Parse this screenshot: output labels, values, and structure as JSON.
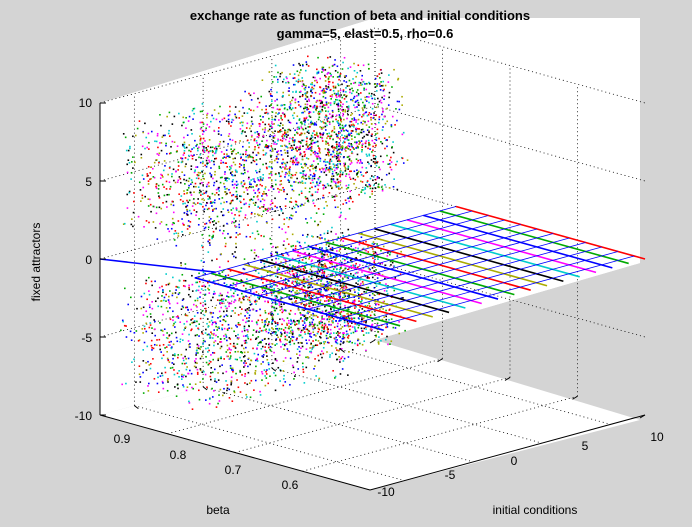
{
  "chart_data": {
    "type": "scatter",
    "title": "exchange rate as function of beta and initial conditions",
    "subtitle": "gamma=5, elast=0.5, rho=0.6",
    "xlabel": "initial conditions",
    "ylabel": "beta",
    "zlabel": "fixed attractors",
    "xlim": [
      -10,
      10
    ],
    "ylim": [
      0.55,
      0.95
    ],
    "zlim": [
      -10,
      10
    ],
    "x_ticks": [
      "-10",
      "-5",
      "0",
      "5",
      "10"
    ],
    "y_ticks": [
      "0.9",
      "0.8",
      "0.7",
      "0.6"
    ],
    "z_ticks": [
      "10",
      "5",
      "0",
      "-5",
      "-10"
    ],
    "grid": true,
    "colors": [
      "#ff0000",
      "#00aa00",
      "#0000ff",
      "#ff00ff",
      "#00cccc",
      "#000000",
      "#aaaa00"
    ],
    "regions": [
      {
        "description": "stable fixed point at zero",
        "beta_range": [
          0.55,
          0.93
        ],
        "z_value": 0
      },
      {
        "description": "scattered attractors upper band",
        "beta_range": [
          0.62,
          0.93
        ],
        "z_range": [
          1,
          9
        ]
      },
      {
        "description": "scattered attractors lower band",
        "beta_range": [
          0.62,
          0.93
        ],
        "z_range": [
          -9,
          -1
        ]
      }
    ]
  }
}
